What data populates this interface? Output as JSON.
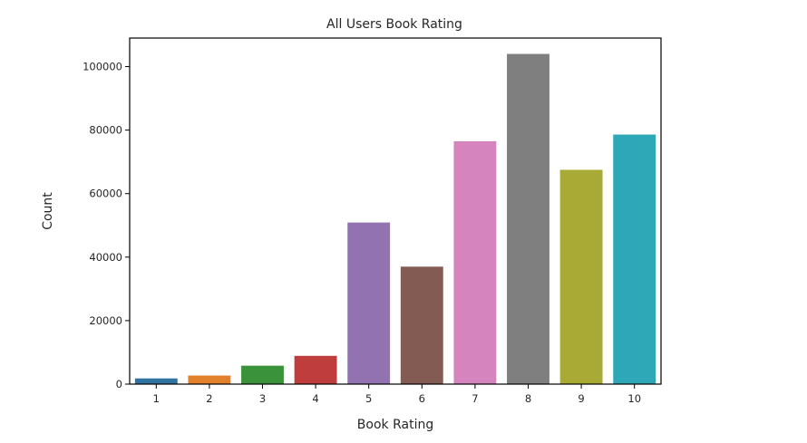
{
  "chart_data": {
    "type": "bar",
    "title": "All Users Book Rating",
    "xlabel": "Book Rating",
    "ylabel": "Count",
    "categories": [
      "1",
      "2",
      "3",
      "4",
      "5",
      "6",
      "7",
      "8",
      "9",
      "10"
    ],
    "values": [
      1800,
      2700,
      5800,
      8900,
      50900,
      37000,
      76500,
      104000,
      67500,
      78600
    ],
    "colors": [
      "#3274a1",
      "#e1812c",
      "#3a923a",
      "#c03d3e",
      "#9372b2",
      "#845b53",
      "#d684bd",
      "#7f7f7f",
      "#a9aa35",
      "#2ea8b6"
    ],
    "ylim": [
      0,
      109000
    ],
    "yticks": [
      0,
      20000,
      40000,
      60000,
      80000,
      100000
    ],
    "ytick_labels": [
      "0",
      "20000",
      "40000",
      "60000",
      "80000",
      "100000"
    ],
    "grid": false,
    "legend": "none"
  }
}
